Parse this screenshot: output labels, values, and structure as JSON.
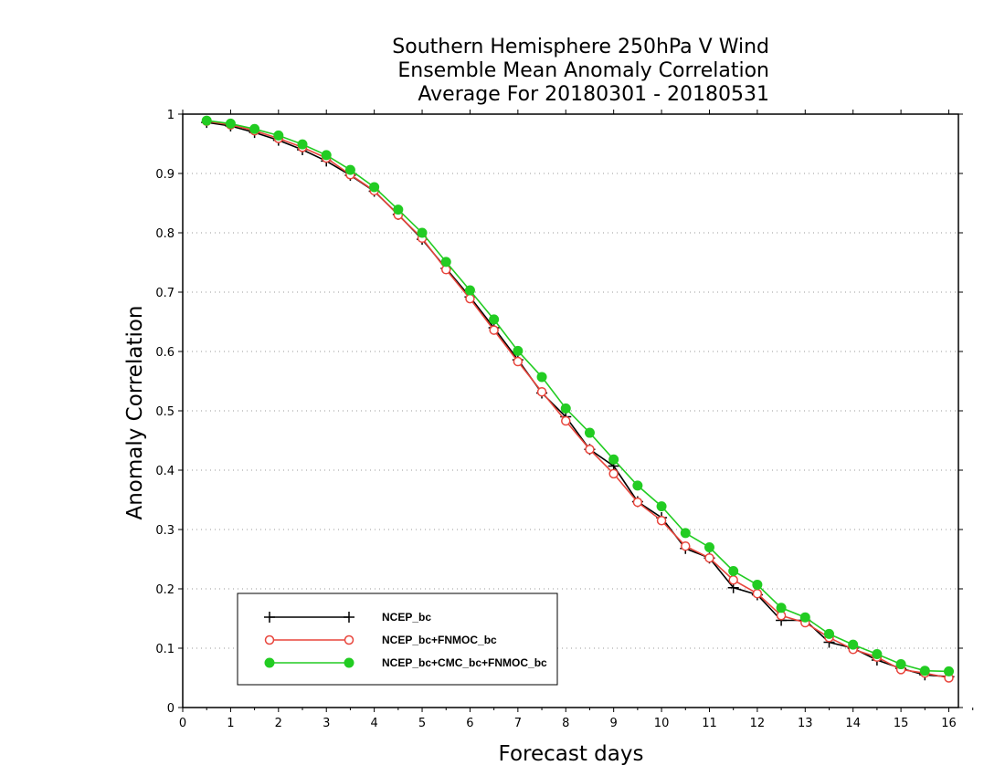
{
  "chart_data": {
    "type": "line",
    "title": [
      "Southern Hemisphere 250hPa V Wind",
      "Ensemble Mean Anomaly Correlation",
      "Average For 20180301 - 20180531"
    ],
    "xlabel": "Forecast days",
    "ylabel": "Anomaly Correlation",
    "xlim": [
      0,
      16.2
    ],
    "ylim": [
      0,
      1
    ],
    "xticks": [
      "0",
      "1",
      "2",
      "3",
      "4",
      "5",
      "6",
      "7",
      "8",
      "9",
      "10",
      "11",
      "12",
      "13",
      "14",
      "15",
      "16"
    ],
    "yticks": [
      "0",
      "0.1",
      "0.2",
      "0.3",
      "0.4",
      "0.5",
      "0.6",
      "0.7",
      "0.8",
      "0.9",
      "1"
    ],
    "grid": "dotted horizontal",
    "legend_position": "bottom-left",
    "x": [
      0.5,
      1,
      1.5,
      2,
      2.5,
      3,
      3.5,
      4,
      4.5,
      5,
      5.5,
      6,
      6.5,
      7,
      7.5,
      8,
      8.5,
      9,
      9.5,
      10,
      10.5,
      11,
      11.5,
      12,
      12.5,
      13,
      13.5,
      14,
      14.5,
      15,
      15.5,
      16
    ],
    "series": [
      {
        "name": "NCEP_bc",
        "color": "#000000",
        "marker": "plus",
        "values": [
          0.986,
          0.98,
          0.969,
          0.956,
          0.94,
          0.921,
          0.897,
          0.87,
          0.831,
          0.789,
          0.74,
          0.692,
          0.64,
          0.586,
          0.53,
          0.49,
          0.435,
          0.407,
          0.347,
          0.32,
          0.268,
          0.252,
          0.202,
          0.19,
          0.147,
          0.147,
          0.11,
          0.1,
          0.08,
          0.066,
          0.055,
          0.052
        ]
      },
      {
        "name": "NCEP_bc+FNMOC_bc",
        "color": "#e8453c",
        "marker": "open-circle",
        "values": [
          0.988,
          0.982,
          0.972,
          0.959,
          0.944,
          0.926,
          0.898,
          0.871,
          0.83,
          0.791,
          0.738,
          0.689,
          0.636,
          0.583,
          0.532,
          0.483,
          0.435,
          0.394,
          0.346,
          0.315,
          0.272,
          0.252,
          0.215,
          0.192,
          0.155,
          0.143,
          0.118,
          0.098,
          0.085,
          0.064,
          0.058,
          0.05
        ]
      },
      {
        "name": "NCEP_bc+CMC_bc+FNMOC_bc",
        "color": "#22cc22",
        "marker": "filled-circle",
        "values": [
          0.989,
          0.984,
          0.975,
          0.964,
          0.949,
          0.931,
          0.906,
          0.877,
          0.839,
          0.8,
          0.751,
          0.703,
          0.654,
          0.601,
          0.557,
          0.504,
          0.463,
          0.418,
          0.374,
          0.339,
          0.294,
          0.27,
          0.23,
          0.207,
          0.168,
          0.152,
          0.124,
          0.106,
          0.09,
          0.073,
          0.062,
          0.061
        ]
      }
    ]
  }
}
